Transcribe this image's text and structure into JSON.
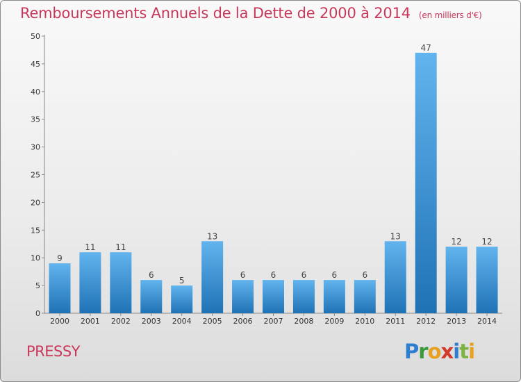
{
  "title": "Remboursements Annuels de la Dette de 2000 à 2014",
  "unit": "(en milliers d'€)",
  "commune": "PRESSY",
  "logo": {
    "letters": [
      {
        "ch": "P",
        "color": "#2f7fd0"
      },
      {
        "ch": "r",
        "color": "#3a9a3a"
      },
      {
        "ch": "o",
        "color": "#e8a020"
      },
      {
        "ch": "x",
        "color": "#d23a2a"
      },
      {
        "ch": "i",
        "color": "#2f7fd0"
      },
      {
        "ch": "t",
        "color": "#7cb342"
      },
      {
        "ch": "i",
        "color": "#e8a020"
      }
    ]
  },
  "colors": {
    "title": "#c8385a",
    "bar_light": "#62b4ee",
    "bar_dark": "#1f72b5"
  },
  "chart_data": {
    "type": "bar",
    "title": "Remboursements Annuels de la Dette de 2000 à 2014",
    "xlabel": "",
    "ylabel": "",
    "categories": [
      "2000",
      "2001",
      "2002",
      "2003",
      "2004",
      "2005",
      "2006",
      "2007",
      "2008",
      "2009",
      "2010",
      "2011",
      "2012",
      "2013",
      "2014"
    ],
    "values": [
      9,
      11,
      11,
      6,
      5,
      13,
      6,
      6,
      6,
      6,
      6,
      13,
      47,
      12,
      12
    ],
    "ylim": [
      0,
      50
    ],
    "yticks": [
      0,
      5,
      10,
      15,
      20,
      25,
      30,
      35,
      40,
      45,
      50
    ],
    "grid": false,
    "data_labels": true
  }
}
